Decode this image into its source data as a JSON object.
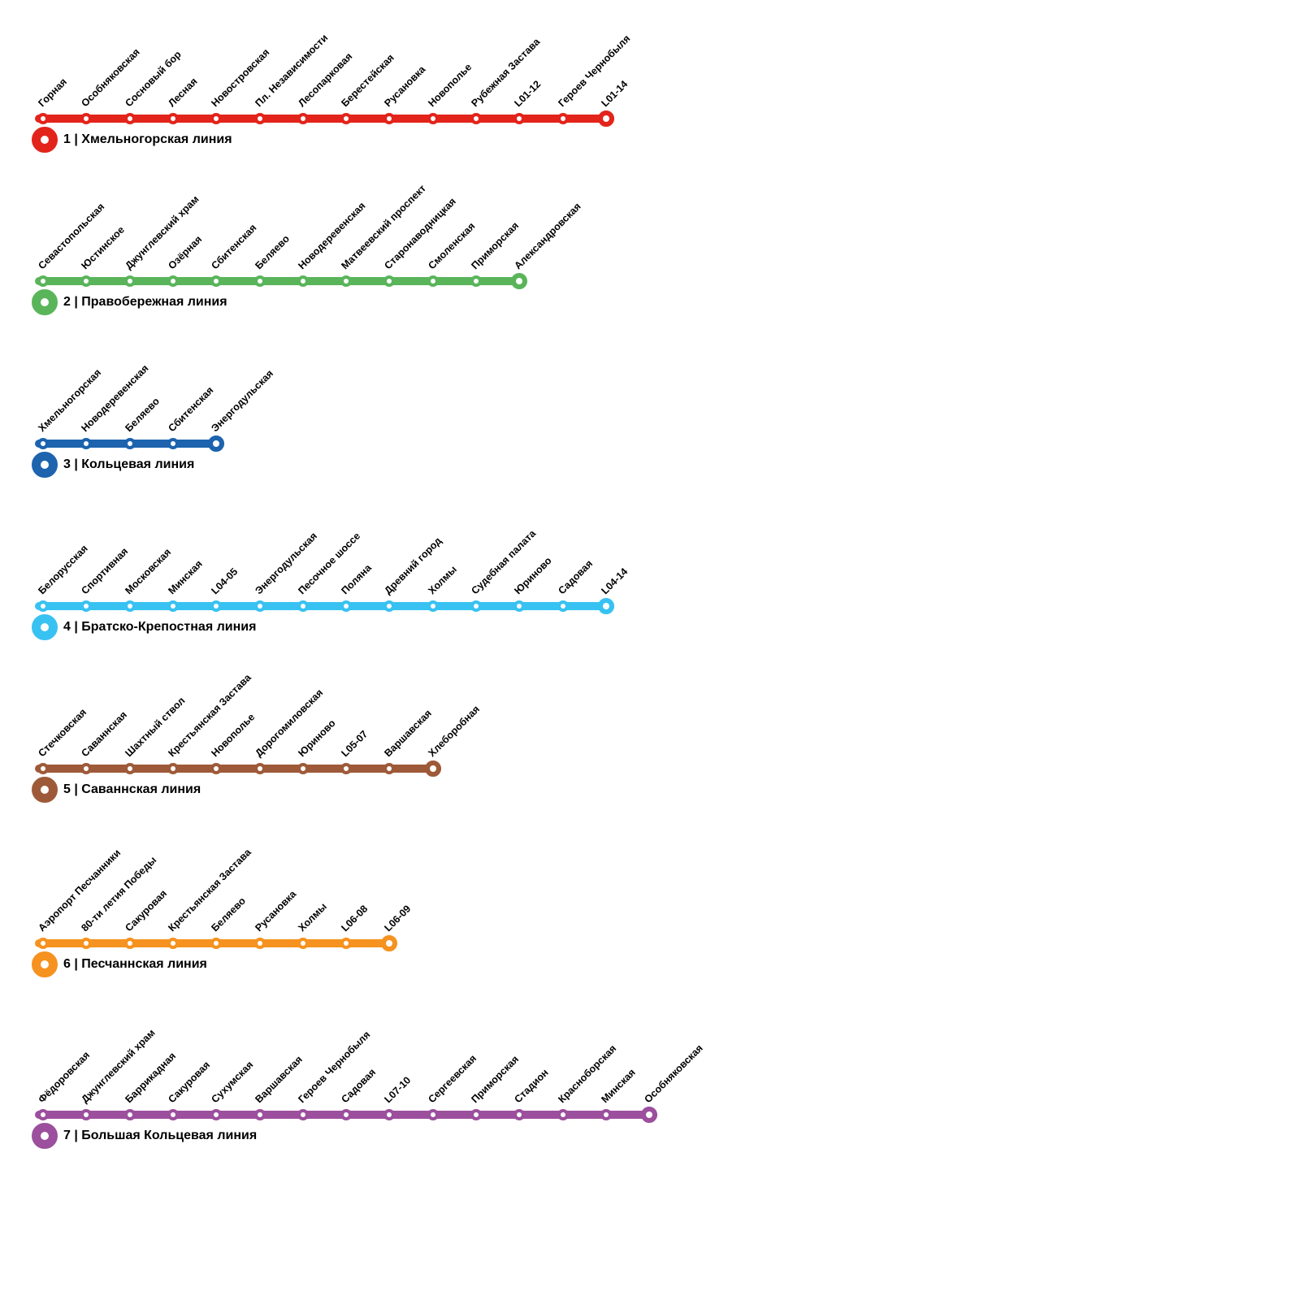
{
  "map": {
    "background_color": "#ffffff",
    "lines": [
      {
        "number": "1",
        "label": "1 | Хмельногорская линия",
        "color": "#e2241b",
        "stations": [
          "Горная",
          "Особняковская",
          "Сосновый бор",
          "Лесная",
          "Новостровская",
          "Пл. Независимости",
          "Лесопарковая",
          "Берестейская",
          "Русановка",
          "Новополье",
          "Рубежная Застава",
          "L01-12",
          "Героев Чернобыля",
          "L01-14"
        ]
      },
      {
        "number": "2",
        "label": "2 | Правобережная линия",
        "color": "#5ab55a",
        "stations": [
          "Севастопольская",
          "Юстинское",
          "Джунглевский храм",
          "Озёрная",
          "Сбитенская",
          "Беляево",
          "Новодеревенская",
          "Матвеевский проспект",
          "Старонаводницкая",
          "Смоленская",
          "Приморская",
          "Александровская"
        ]
      },
      {
        "number": "3",
        "label": "3 | Кольцевая линия",
        "color": "#1d63ae",
        "stations": [
          "Хмельногорская",
          "Новодеревенская",
          "Беляево",
          "Сбитенская",
          "Энергодульская"
        ]
      },
      {
        "number": "4",
        "label": "4 | Братско-Крепостная линия",
        "color": "#38c2f2",
        "stations": [
          "Белорусская",
          "Спортивная",
          "Московская",
          "Минская",
          "L04-05",
          "Энергодульская",
          "Песочное шоссе",
          "Поляна",
          "Древний город",
          "Холмы",
          "Судебная палата",
          "Юриново",
          "Садовая",
          "L04-14"
        ]
      },
      {
        "number": "5",
        "label": "5 | Саваннская линия",
        "color": "#9e5a38",
        "stations": [
          "Стечковская",
          "Саваннская",
          "Шахтный ствол",
          "Крестьянская Застава",
          "Новополье",
          "Дорогомиловская",
          "Юриново",
          "L05-07",
          "Варшавская",
          "Хлеборобная"
        ]
      },
      {
        "number": "6",
        "label": "6 | Песчаннская линия",
        "color": "#f6921f",
        "stations": [
          "Аэропорт Песчанники",
          "80-ти летия Победы",
          "Сакуровая",
          "Крестьянская Застава",
          "Беляево",
          "Русановка",
          "Холмы",
          "L06-08",
          "L06-09"
        ]
      },
      {
        "number": "7",
        "label": "7 | Большая Кольцевая линия",
        "color": "#9c4f9d",
        "stations": [
          "Фёдоровская",
          "Джунглевский храм",
          "Баррикадная",
          "Сакуровая",
          "Сухумская",
          "Варшавская",
          "Героев Чернобыля",
          "Садовая",
          "L07-10",
          "Сергеевская",
          "Приморская",
          "Стадион",
          "Красноборская",
          "Минская",
          "Особняковская"
        ]
      }
    ]
  }
}
